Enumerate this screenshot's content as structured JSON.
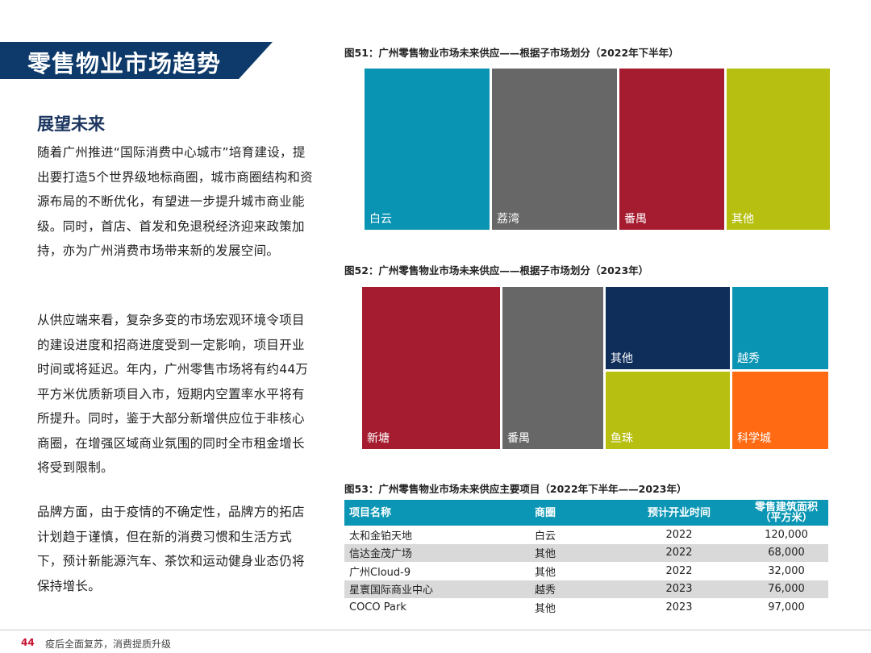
{
  "banner": {
    "title": "零售物业市场趋势",
    "bg_color": "#0d3a6a",
    "accent_color": "#c8102e"
  },
  "section": {
    "subtitle": "展望未来",
    "paragraphs": [
      "随着广州推进“国际消费中心城市”培育建设，提出要打造5个世界级地标商圈，城市商圈结构和资源布局的不断优化，有望进一步提升城市商业能级。同时，首店、首发和免退税经济迎来政策加持，亦为广州消费市场带来新的发展空间。",
      "从供应端来看，复杂多变的市场宏观环境令项目的建设进度和招商进度受到一定影响，项目开业时间或将延迟。年内，广州零售市场将有约44万平方米优质新项目入市，短期内空置率水平将有所提升。同时，鉴于大部分新增供应位于非核心商圈，在增强区域商业氛围的同时全市租金增长将受到限制。",
      "品牌方面，由于疫情的不确定性，品牌方的拓店计划趋于谨慎，但在新的消费习惯和生活方式下，预计新能源汽车、茶饮和运动健身业态仍将保持增长。"
    ]
  },
  "fig51": {
    "title": "图51：广州零售物业市场未来供应——根据子市场划分（2022年下半年）",
    "tiles": [
      {
        "label": "白云",
        "color": "#0a94b4"
      },
      {
        "label": "荔湾",
        "color": "#676767"
      },
      {
        "label": "番禺",
        "color": "#a51c30"
      },
      {
        "label": "其他",
        "color": "#b7bf10"
      }
    ]
  },
  "fig52": {
    "title": "图52：广州零售物业市场未来供应——根据子市场划分（2023年）",
    "tiles": [
      {
        "label": "新塘",
        "color": "#a51c30"
      },
      {
        "label": "番禺",
        "color": "#676767"
      },
      {
        "label": "其他",
        "color": "#0f2e5a"
      },
      {
        "label": "越秀",
        "color": "#0a94b4"
      },
      {
        "label": "鱼珠",
        "color": "#b7bf10"
      },
      {
        "label": "科学城",
        "color": "#ff6a13"
      }
    ]
  },
  "fig53": {
    "title": "图53：广州零售物业市场未来供应主要项目（2022年下半年——2023年）",
    "headers": [
      "项目名称",
      "商圈",
      "预计开业时间",
      "零售建筑面积",
      "（平方米）"
    ],
    "rows": [
      [
        "太和金铂天地",
        "白云",
        "2022",
        "120,000"
      ],
      [
        "信达金茂广场",
        "其他",
        "2022",
        "68,000"
      ],
      [
        "广州Cloud-9",
        "其他",
        "2022",
        "32,000"
      ],
      [
        "星寰国际商业中心",
        "越秀",
        "2023",
        "76,000"
      ],
      [
        "COCO Park",
        "其他",
        "2023",
        "97,000"
      ]
    ]
  },
  "footer": {
    "page_number": "44",
    "text": "疫后全面复苏，消费提质升级"
  }
}
